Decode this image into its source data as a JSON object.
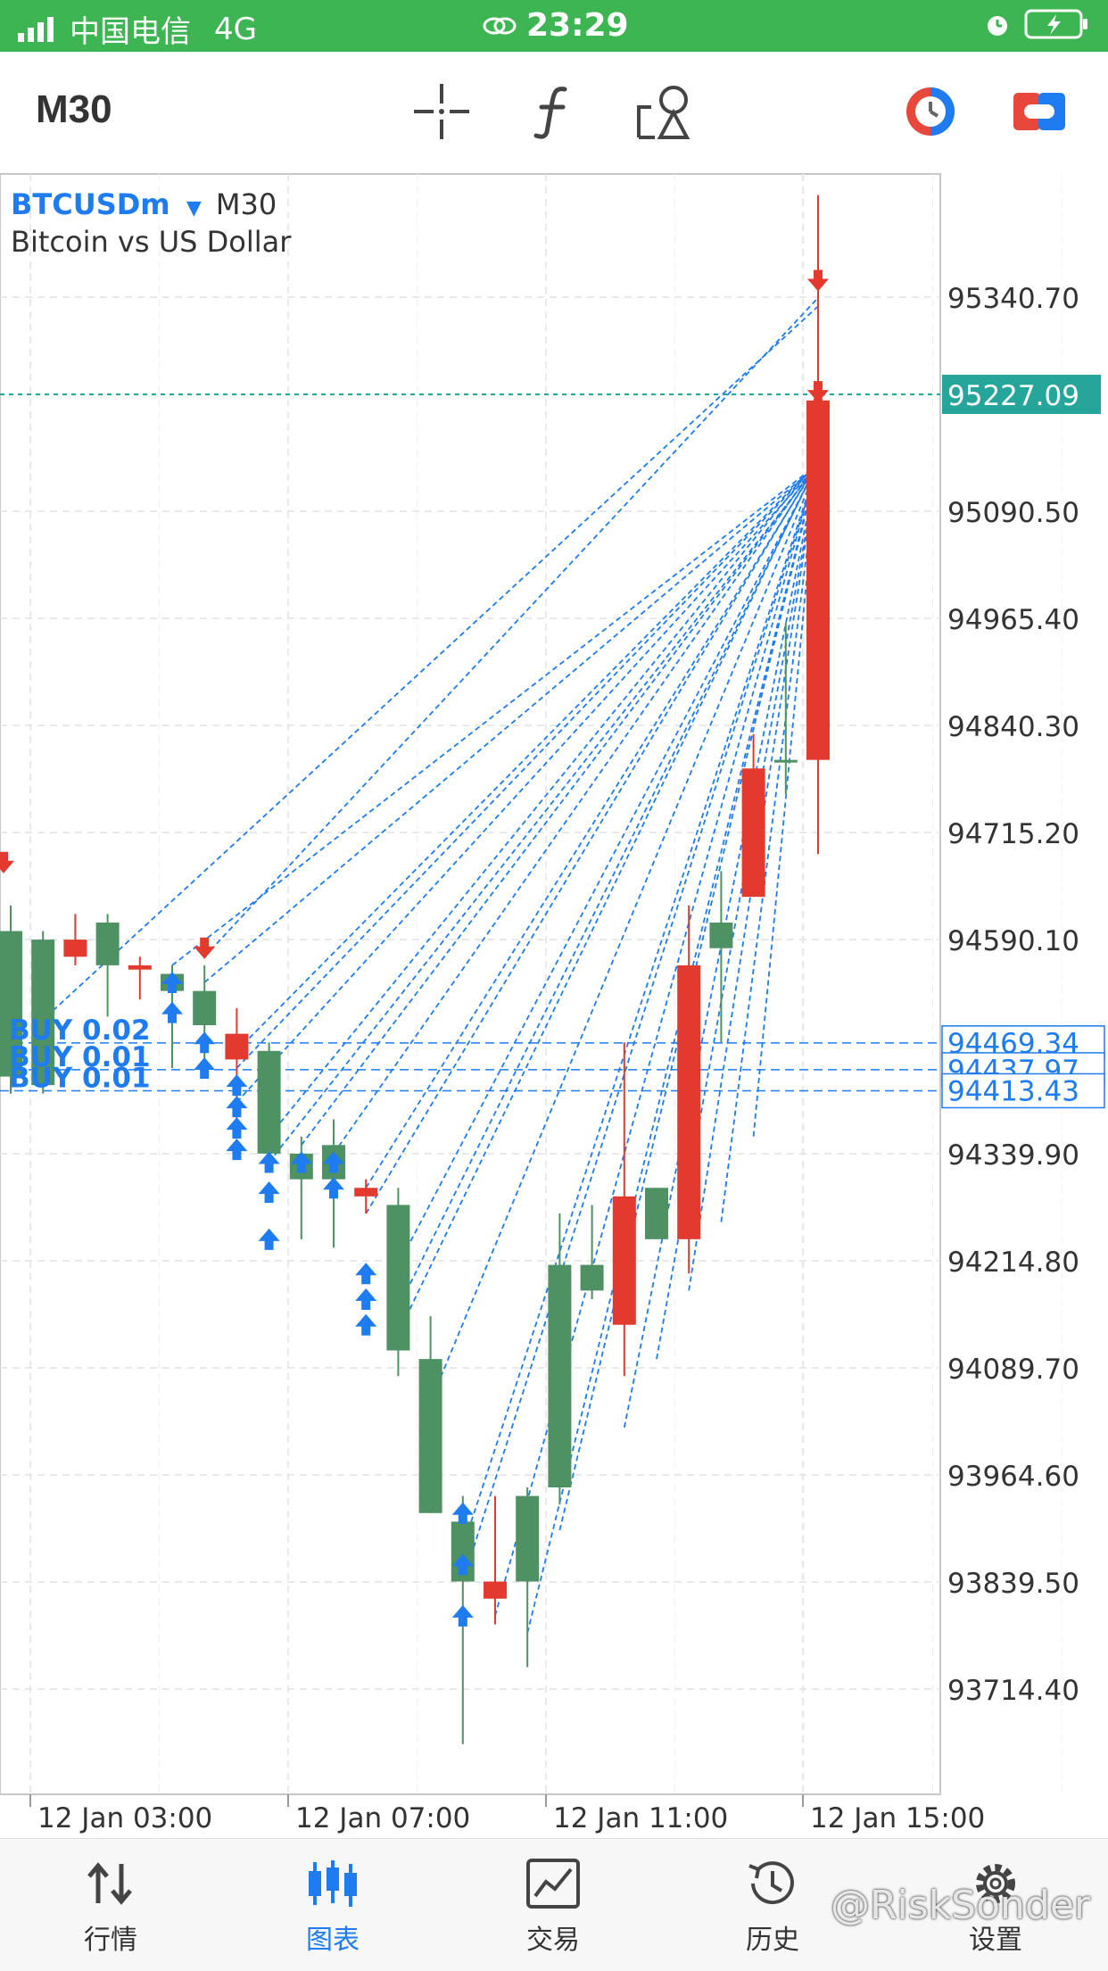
{
  "status_bar": {
    "carrier": "中国电信",
    "network": "4G",
    "time": "23:29"
  },
  "toolbar": {
    "timeframe": "M30"
  },
  "chart_header": {
    "symbol": "BTCUSDm",
    "timeframe": "M30",
    "description": "Bitcoin vs US Dollar"
  },
  "price_axis": {
    "ticks": [
      "95340.70",
      "95090.50",
      "94965.40",
      "94840.30",
      "94715.20",
      "94590.10",
      "94339.90",
      "94214.80",
      "94089.70",
      "93964.60",
      "93839.50",
      "93714.40"
    ],
    "current_price": "95227.09",
    "position_prices": [
      "94469.34",
      "94437.97",
      "94413.43"
    ]
  },
  "time_axis": {
    "ticks": [
      "12 Jan 03:00",
      "12 Jan 07:00",
      "12 Jan 11:00",
      "12 Jan 15:00"
    ]
  },
  "orders": [
    "BUY 0.02",
    "BUY 0.01",
    "BUY 0.01"
  ],
  "colors": {
    "bull": "#4e9163",
    "bear": "#e23a2e",
    "accent": "#1e7bf0",
    "current_price_bg": "#26a69a",
    "status_bar": "#3db552"
  },
  "chart_data": {
    "type": "candlestick",
    "symbol": "BTCUSDm",
    "timeframe": "M30",
    "ylim": [
      93640,
      95480
    ],
    "candles": [
      {
        "o": 94430,
        "h": 94630,
        "l": 94410,
        "c": 94600
      },
      {
        "o": 94420,
        "h": 94600,
        "l": 94410,
        "c": 94590
      },
      {
        "o": 94590,
        "h": 94620,
        "l": 94560,
        "c": 94570
      },
      {
        "o": 94560,
        "h": 94620,
        "l": 94500,
        "c": 94610
      },
      {
        "o": 94560,
        "h": 94570,
        "l": 94520,
        "c": 94555
      },
      {
        "o": 94530,
        "h": 94560,
        "l": 94440,
        "c": 94550
      },
      {
        "o": 94490,
        "h": 94560,
        "l": 94440,
        "c": 94530
      },
      {
        "o": 94480,
        "h": 94510,
        "l": 94370,
        "c": 94450
      },
      {
        "o": 94340,
        "h": 94470,
        "l": 94320,
        "c": 94460
      },
      {
        "o": 94310,
        "h": 94360,
        "l": 94240,
        "c": 94340
      },
      {
        "o": 94310,
        "h": 94380,
        "l": 94230,
        "c": 94350
      },
      {
        "o": 94300,
        "h": 94310,
        "l": 94270,
        "c": 94290
      },
      {
        "o": 94110,
        "h": 94300,
        "l": 94080,
        "c": 94280
      },
      {
        "o": 93920,
        "h": 94150,
        "l": 93920,
        "c": 94100
      },
      {
        "o": 93840,
        "h": 93940,
        "l": 93650,
        "c": 93910
      },
      {
        "o": 93840,
        "h": 93940,
        "l": 93790,
        "c": 93820
      },
      {
        "o": 93840,
        "h": 93950,
        "l": 93740,
        "c": 93940
      },
      {
        "o": 93950,
        "h": 94270,
        "l": 93930,
        "c": 94210
      },
      {
        "o": 94180,
        "h": 94280,
        "l": 94170,
        "c": 94210
      },
      {
        "o": 94290,
        "h": 94470,
        "l": 94080,
        "c": 94140
      },
      {
        "o": 94240,
        "h": 94300,
        "l": 94240,
        "c": 94300
      },
      {
        "o": 94560,
        "h": 94630,
        "l": 94200,
        "c": 94240
      },
      {
        "o": 94580,
        "h": 94670,
        "l": 94470,
        "c": 94610
      },
      {
        "o": 94790,
        "h": 94830,
        "l": 94640,
        "c": 94640
      },
      {
        "o": 94800,
        "h": 94960,
        "l": 94760,
        "c": 94800
      },
      {
        "o": 95220,
        "h": 95460,
        "l": 94690,
        "c": 94800
      }
    ]
  }
}
